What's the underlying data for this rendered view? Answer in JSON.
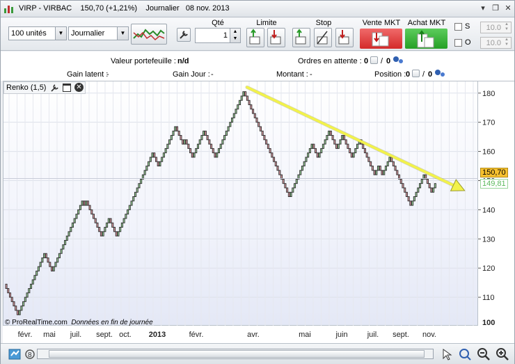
{
  "window": {
    "ticker": "VIRP - VIRBAC",
    "price_text": "150,70 (+1,21%)",
    "period": "Journalier",
    "date": "08 nov. 2013",
    "controls": [
      "▾",
      "❐",
      "✕"
    ]
  },
  "toolbar": {
    "units_select": "100 unités",
    "period_select": "Journalier",
    "qty_label": "Qté",
    "qty_value": "1",
    "limit_label": "Limite",
    "stop_label": "Stop",
    "sell_label": "Vente MKT",
    "buy_label": "Achat MKT",
    "s_label": "S",
    "o_label": "O",
    "s_value": "10.0",
    "o_value": "10.0"
  },
  "info": {
    "valeur_label": "Valeur portefeuille :",
    "valeur_value": "n/d",
    "ordres_label": "Ordres en attente :",
    "ordres_value_1": "0",
    "ordres_value_2": "0",
    "gain_latent_label": "Gain latent :",
    "gain_latent_value": "-",
    "gain_jour_label": "Gain Jour :",
    "gain_jour_value": "-",
    "montant_label": "Montant :",
    "montant_value": "-",
    "position_label": "Position :",
    "position_value_1": "0",
    "position_value_2": "0"
  },
  "chart_header": {
    "title": "Renko (1,5)"
  },
  "footer_text": {
    "copyright": "© ProRealTime.com",
    "note": "Données en fin de journée"
  },
  "price_tags": {
    "last": "150,70",
    "prev": "149,81"
  },
  "chart_data": {
    "type": "line",
    "chart_style": "renko",
    "title": "Renko (1,5)",
    "brick_size": 1.5,
    "ylim": [
      100,
      184
    ],
    "y_ticks": [
      100,
      110,
      120,
      130,
      140,
      150,
      160,
      170,
      180
    ],
    "x_ticks": [
      "févr.",
      "mai",
      "juil.",
      "sept.",
      "oct.",
      "2013",
      "févr.",
      "avr.",
      "mai",
      "juin",
      "juil.",
      "sept.",
      "nov."
    ],
    "grid": true,
    "trend_path": [
      114.5,
      104,
      104,
      108,
      116,
      126,
      118,
      133,
      143,
      141,
      143,
      130,
      138,
      131,
      143,
      160,
      154,
      160,
      169,
      162,
      165,
      158,
      167,
      158,
      172,
      181,
      174,
      165,
      153,
      144,
      153,
      163,
      157,
      168,
      160,
      166,
      158,
      165,
      152,
      156,
      152,
      158,
      145,
      141,
      145,
      149,
      153,
      150,
      145,
      150
    ],
    "trendline": {
      "from_value": 182,
      "to_value": 148,
      "color": "#f2f24a"
    },
    "colors": {
      "up": "#9ed89e",
      "down": "#e4a0a8",
      "border": "#2a2a2a"
    }
  }
}
